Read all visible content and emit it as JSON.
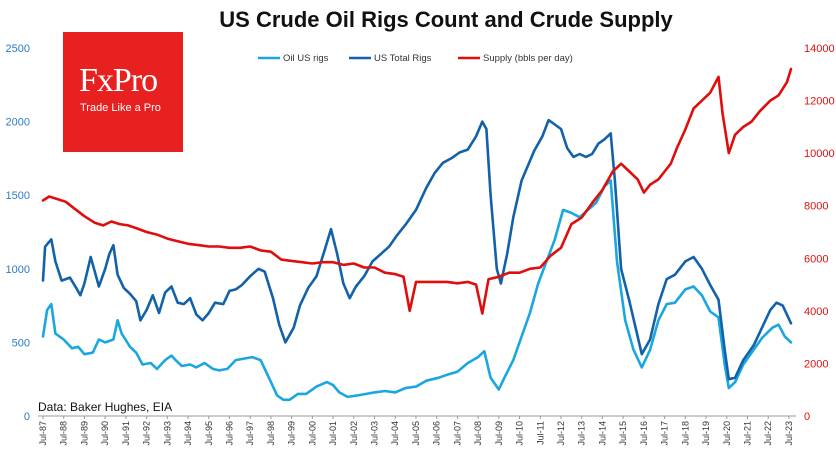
{
  "chart_data": {
    "type": "line",
    "title": "US Crude Oil Rigs Count and Crude Supply",
    "source": "Data: Baker Hughes, EIA",
    "logo": {
      "brand": "FxPro",
      "tagline": "Trade Like a Pro"
    },
    "y_left": {
      "min": 0,
      "max": 2500,
      "ticks": [
        0,
        500,
        1000,
        1500,
        2000,
        2500
      ]
    },
    "y_right": {
      "min": 0,
      "max": 14000,
      "ticks": [
        0,
        2000,
        4000,
        6000,
        8000,
        10000,
        12000,
        14000
      ]
    },
    "x_range": [
      1987.5,
      2023.6
    ],
    "x_ticks": [
      "Jul-87",
      "Jul-88",
      "Jul-89",
      "Jul-90",
      "Jul-91",
      "Jul-92",
      "Jul-93",
      "Jul-94",
      "Jul-95",
      "Jul-96",
      "Jul-97",
      "Jul-98",
      "Jul-99",
      "Jul-00",
      "Jul-01",
      "Jul-02",
      "Jul-03",
      "Jul-04",
      "Jul-05",
      "Jul-06",
      "Jul-07",
      "Jul-08",
      "Jul-09",
      "Jul-10",
      "Jul-11",
      "Jul-12",
      "Jul-13",
      "Jul-14",
      "Jul-15",
      "Jul-16",
      "Jul-17",
      "Jul-18",
      "Jul-19",
      "Jul-20",
      "Jul-21",
      "Jul-22",
      "Jul-23"
    ],
    "series": [
      {
        "name": "Oil US rigs",
        "axis": "left",
        "color": "#1aa7e0",
        "points": [
          [
            1987.5,
            540
          ],
          [
            1987.7,
            720
          ],
          [
            1987.9,
            760
          ],
          [
            1988.1,
            560
          ],
          [
            1988.5,
            520
          ],
          [
            1988.9,
            460
          ],
          [
            1989.2,
            470
          ],
          [
            1989.5,
            420
          ],
          [
            1989.9,
            430
          ],
          [
            1990.2,
            520
          ],
          [
            1990.5,
            500
          ],
          [
            1990.9,
            520
          ],
          [
            1991.1,
            650
          ],
          [
            1991.3,
            560
          ],
          [
            1991.7,
            470
          ],
          [
            1992.0,
            430
          ],
          [
            1992.3,
            350
          ],
          [
            1992.7,
            360
          ],
          [
            1993.0,
            320
          ],
          [
            1993.4,
            380
          ],
          [
            1993.7,
            410
          ],
          [
            1993.9,
            380
          ],
          [
            1994.2,
            340
          ],
          [
            1994.6,
            350
          ],
          [
            1994.9,
            330
          ],
          [
            1995.3,
            360
          ],
          [
            1995.7,
            320
          ],
          [
            1996.0,
            310
          ],
          [
            1996.4,
            320
          ],
          [
            1996.8,
            380
          ],
          [
            1997.2,
            390
          ],
          [
            1997.6,
            400
          ],
          [
            1998.0,
            380
          ],
          [
            1998.4,
            260
          ],
          [
            1998.8,
            140
          ],
          [
            1999.1,
            110
          ],
          [
            1999.4,
            110
          ],
          [
            1999.8,
            150
          ],
          [
            2000.2,
            150
          ],
          [
            2000.7,
            200
          ],
          [
            2001.2,
            230
          ],
          [
            2001.5,
            210
          ],
          [
            2001.8,
            160
          ],
          [
            2002.2,
            130
          ],
          [
            2002.7,
            140
          ],
          [
            2003.1,
            150
          ],
          [
            2003.5,
            160
          ],
          [
            2004.0,
            170
          ],
          [
            2004.5,
            160
          ],
          [
            2005.0,
            190
          ],
          [
            2005.5,
            200
          ],
          [
            2006.0,
            240
          ],
          [
            2006.6,
            260
          ],
          [
            2007.0,
            280
          ],
          [
            2007.5,
            300
          ],
          [
            2008.0,
            360
          ],
          [
            2008.5,
            400
          ],
          [
            2008.8,
            440
          ],
          [
            2009.1,
            260
          ],
          [
            2009.5,
            180
          ],
          [
            2009.8,
            270
          ],
          [
            2010.2,
            380
          ],
          [
            2010.6,
            540
          ],
          [
            2011.0,
            700
          ],
          [
            2011.4,
            900
          ],
          [
            2011.8,
            1050
          ],
          [
            2012.2,
            1200
          ],
          [
            2012.6,
            1400
          ],
          [
            2013.0,
            1380
          ],
          [
            2013.4,
            1350
          ],
          [
            2013.8,
            1400
          ],
          [
            2014.2,
            1450
          ],
          [
            2014.6,
            1560
          ],
          [
            2014.9,
            1600
          ],
          [
            2015.2,
            1050
          ],
          [
            2015.6,
            650
          ],
          [
            2016.0,
            450
          ],
          [
            2016.4,
            330
          ],
          [
            2016.8,
            450
          ],
          [
            2017.2,
            650
          ],
          [
            2017.6,
            760
          ],
          [
            2018.0,
            770
          ],
          [
            2018.5,
            860
          ],
          [
            2018.9,
            880
          ],
          [
            2019.3,
            820
          ],
          [
            2019.7,
            710
          ],
          [
            2020.1,
            670
          ],
          [
            2020.4,
            350
          ],
          [
            2020.6,
            190
          ],
          [
            2020.9,
            230
          ],
          [
            2021.3,
            350
          ],
          [
            2021.8,
            450
          ],
          [
            2022.2,
            530
          ],
          [
            2022.7,
            600
          ],
          [
            2023.0,
            620
          ],
          [
            2023.3,
            540
          ],
          [
            2023.6,
            500
          ]
        ]
      },
      {
        "name": "US Total Rigs",
        "axis": "left",
        "color": "#1361a8",
        "points": [
          [
            1987.5,
            920
          ],
          [
            1987.6,
            1150
          ],
          [
            1987.9,
            1200
          ],
          [
            1988.1,
            1050
          ],
          [
            1988.4,
            920
          ],
          [
            1988.8,
            940
          ],
          [
            1989.1,
            870
          ],
          [
            1989.3,
            820
          ],
          [
            1989.5,
            900
          ],
          [
            1989.8,
            1080
          ],
          [
            1990.0,
            980
          ],
          [
            1990.2,
            880
          ],
          [
            1990.5,
            1000
          ],
          [
            1990.7,
            1100
          ],
          [
            1990.9,
            1160
          ],
          [
            1991.1,
            960
          ],
          [
            1991.4,
            870
          ],
          [
            1991.7,
            830
          ],
          [
            1992.0,
            780
          ],
          [
            1992.2,
            650
          ],
          [
            1992.5,
            720
          ],
          [
            1992.8,
            820
          ],
          [
            1993.1,
            700
          ],
          [
            1993.4,
            840
          ],
          [
            1993.7,
            880
          ],
          [
            1994.0,
            770
          ],
          [
            1994.3,
            760
          ],
          [
            1994.6,
            800
          ],
          [
            1994.9,
            690
          ],
          [
            1995.2,
            650
          ],
          [
            1995.5,
            700
          ],
          [
            1995.8,
            770
          ],
          [
            1996.2,
            760
          ],
          [
            1996.5,
            850
          ],
          [
            1996.8,
            860
          ],
          [
            1997.1,
            890
          ],
          [
            1997.5,
            950
          ],
          [
            1997.9,
            1000
          ],
          [
            1998.2,
            980
          ],
          [
            1998.6,
            800
          ],
          [
            1998.9,
            620
          ],
          [
            1999.2,
            500
          ],
          [
            1999.6,
            600
          ],
          [
            1999.9,
            750
          ],
          [
            2000.3,
            870
          ],
          [
            2000.7,
            950
          ],
          [
            2001.1,
            1130
          ],
          [
            2001.4,
            1270
          ],
          [
            2001.7,
            1100
          ],
          [
            2002.0,
            900
          ],
          [
            2002.3,
            800
          ],
          [
            2002.6,
            880
          ],
          [
            2003.0,
            950
          ],
          [
            2003.4,
            1050
          ],
          [
            2003.8,
            1100
          ],
          [
            2004.2,
            1150
          ],
          [
            2004.6,
            1230
          ],
          [
            2005.0,
            1300
          ],
          [
            2005.5,
            1400
          ],
          [
            2006.0,
            1550
          ],
          [
            2006.4,
            1650
          ],
          [
            2006.8,
            1720
          ],
          [
            2007.2,
            1750
          ],
          [
            2007.6,
            1790
          ],
          [
            2008.0,
            1810
          ],
          [
            2008.4,
            1900
          ],
          [
            2008.7,
            2000
          ],
          [
            2008.9,
            1950
          ],
          [
            2009.1,
            1500
          ],
          [
            2009.4,
            1000
          ],
          [
            2009.6,
            900
          ],
          [
            2009.9,
            1100
          ],
          [
            2010.2,
            1350
          ],
          [
            2010.6,
            1600
          ],
          [
            2010.9,
            1700
          ],
          [
            2011.2,
            1800
          ],
          [
            2011.6,
            1900
          ],
          [
            2011.9,
            2010
          ],
          [
            2012.2,
            1980
          ],
          [
            2012.5,
            1950
          ],
          [
            2012.8,
            1820
          ],
          [
            2013.1,
            1760
          ],
          [
            2013.4,
            1780
          ],
          [
            2013.7,
            1760
          ],
          [
            2014.0,
            1780
          ],
          [
            2014.3,
            1850
          ],
          [
            2014.6,
            1880
          ],
          [
            2014.9,
            1920
          ],
          [
            2015.1,
            1600
          ],
          [
            2015.4,
            1000
          ],
          [
            2015.8,
            780
          ],
          [
            2016.1,
            600
          ],
          [
            2016.4,
            420
          ],
          [
            2016.8,
            520
          ],
          [
            2017.2,
            760
          ],
          [
            2017.6,
            930
          ],
          [
            2018.0,
            960
          ],
          [
            2018.5,
            1050
          ],
          [
            2018.9,
            1080
          ],
          [
            2019.3,
            1000
          ],
          [
            2019.7,
            890
          ],
          [
            2020.1,
            790
          ],
          [
            2020.4,
            450
          ],
          [
            2020.6,
            250
          ],
          [
            2020.9,
            260
          ],
          [
            2021.3,
            380
          ],
          [
            2021.8,
            480
          ],
          [
            2022.2,
            600
          ],
          [
            2022.6,
            720
          ],
          [
            2022.9,
            770
          ],
          [
            2023.2,
            750
          ],
          [
            2023.6,
            630
          ]
        ]
      },
      {
        "name": "Supply (bbls per day)",
        "axis": "right",
        "color": "#e00d0d",
        "points": [
          [
            1987.5,
            8200
          ],
          [
            1987.8,
            8350
          ],
          [
            1988.2,
            8250
          ],
          [
            1988.6,
            8150
          ],
          [
            1989.0,
            7900
          ],
          [
            1989.5,
            7600
          ],
          [
            1990.0,
            7350
          ],
          [
            1990.4,
            7250
          ],
          [
            1990.8,
            7400
          ],
          [
            1991.2,
            7300
          ],
          [
            1991.6,
            7250
          ],
          [
            1992.0,
            7150
          ],
          [
            1992.5,
            7000
          ],
          [
            1993.0,
            6900
          ],
          [
            1993.5,
            6750
          ],
          [
            1994.0,
            6650
          ],
          [
            1994.5,
            6550
          ],
          [
            1995.0,
            6500
          ],
          [
            1995.5,
            6450
          ],
          [
            1996.0,
            6450
          ],
          [
            1996.5,
            6400
          ],
          [
            1997.0,
            6400
          ],
          [
            1997.5,
            6450
          ],
          [
            1998.0,
            6300
          ],
          [
            1998.5,
            6250
          ],
          [
            1999.0,
            5950
          ],
          [
            1999.5,
            5900
          ],
          [
            2000.0,
            5850
          ],
          [
            2000.5,
            5800
          ],
          [
            2001.0,
            5850
          ],
          [
            2001.5,
            5850
          ],
          [
            2002.0,
            5750
          ],
          [
            2002.5,
            5800
          ],
          [
            2003.0,
            5650
          ],
          [
            2003.5,
            5650
          ],
          [
            2004.0,
            5450
          ],
          [
            2004.5,
            5400
          ],
          [
            2004.9,
            5300
          ],
          [
            2005.2,
            4000
          ],
          [
            2005.5,
            5100
          ],
          [
            2006.0,
            5100
          ],
          [
            2006.5,
            5100
          ],
          [
            2007.0,
            5100
          ],
          [
            2007.5,
            5050
          ],
          [
            2008.0,
            5100
          ],
          [
            2008.4,
            5000
          ],
          [
            2008.7,
            3900
          ],
          [
            2009.0,
            5200
          ],
          [
            2009.5,
            5300
          ],
          [
            2010.0,
            5450
          ],
          [
            2010.5,
            5450
          ],
          [
            2011.0,
            5600
          ],
          [
            2011.5,
            5650
          ],
          [
            2012.0,
            6100
          ],
          [
            2012.5,
            6400
          ],
          [
            2013.0,
            7300
          ],
          [
            2013.5,
            7550
          ],
          [
            2014.0,
            8100
          ],
          [
            2014.5,
            8600
          ],
          [
            2015.0,
            9300
          ],
          [
            2015.4,
            9600
          ],
          [
            2015.8,
            9300
          ],
          [
            2016.2,
            9000
          ],
          [
            2016.5,
            8500
          ],
          [
            2016.8,
            8800
          ],
          [
            2017.2,
            9000
          ],
          [
            2017.5,
            9300
          ],
          [
            2017.8,
            9600
          ],
          [
            2018.1,
            10200
          ],
          [
            2018.5,
            10900
          ],
          [
            2018.9,
            11700
          ],
          [
            2019.3,
            12000
          ],
          [
            2019.7,
            12300
          ],
          [
            2020.1,
            12900
          ],
          [
            2020.3,
            11500
          ],
          [
            2020.6,
            10000
          ],
          [
            2020.9,
            10700
          ],
          [
            2021.3,
            11000
          ],
          [
            2021.7,
            11200
          ],
          [
            2022.1,
            11600
          ],
          [
            2022.6,
            12000
          ],
          [
            2023.0,
            12200
          ],
          [
            2023.4,
            12700
          ],
          [
            2023.6,
            13200
          ]
        ]
      }
    ]
  }
}
